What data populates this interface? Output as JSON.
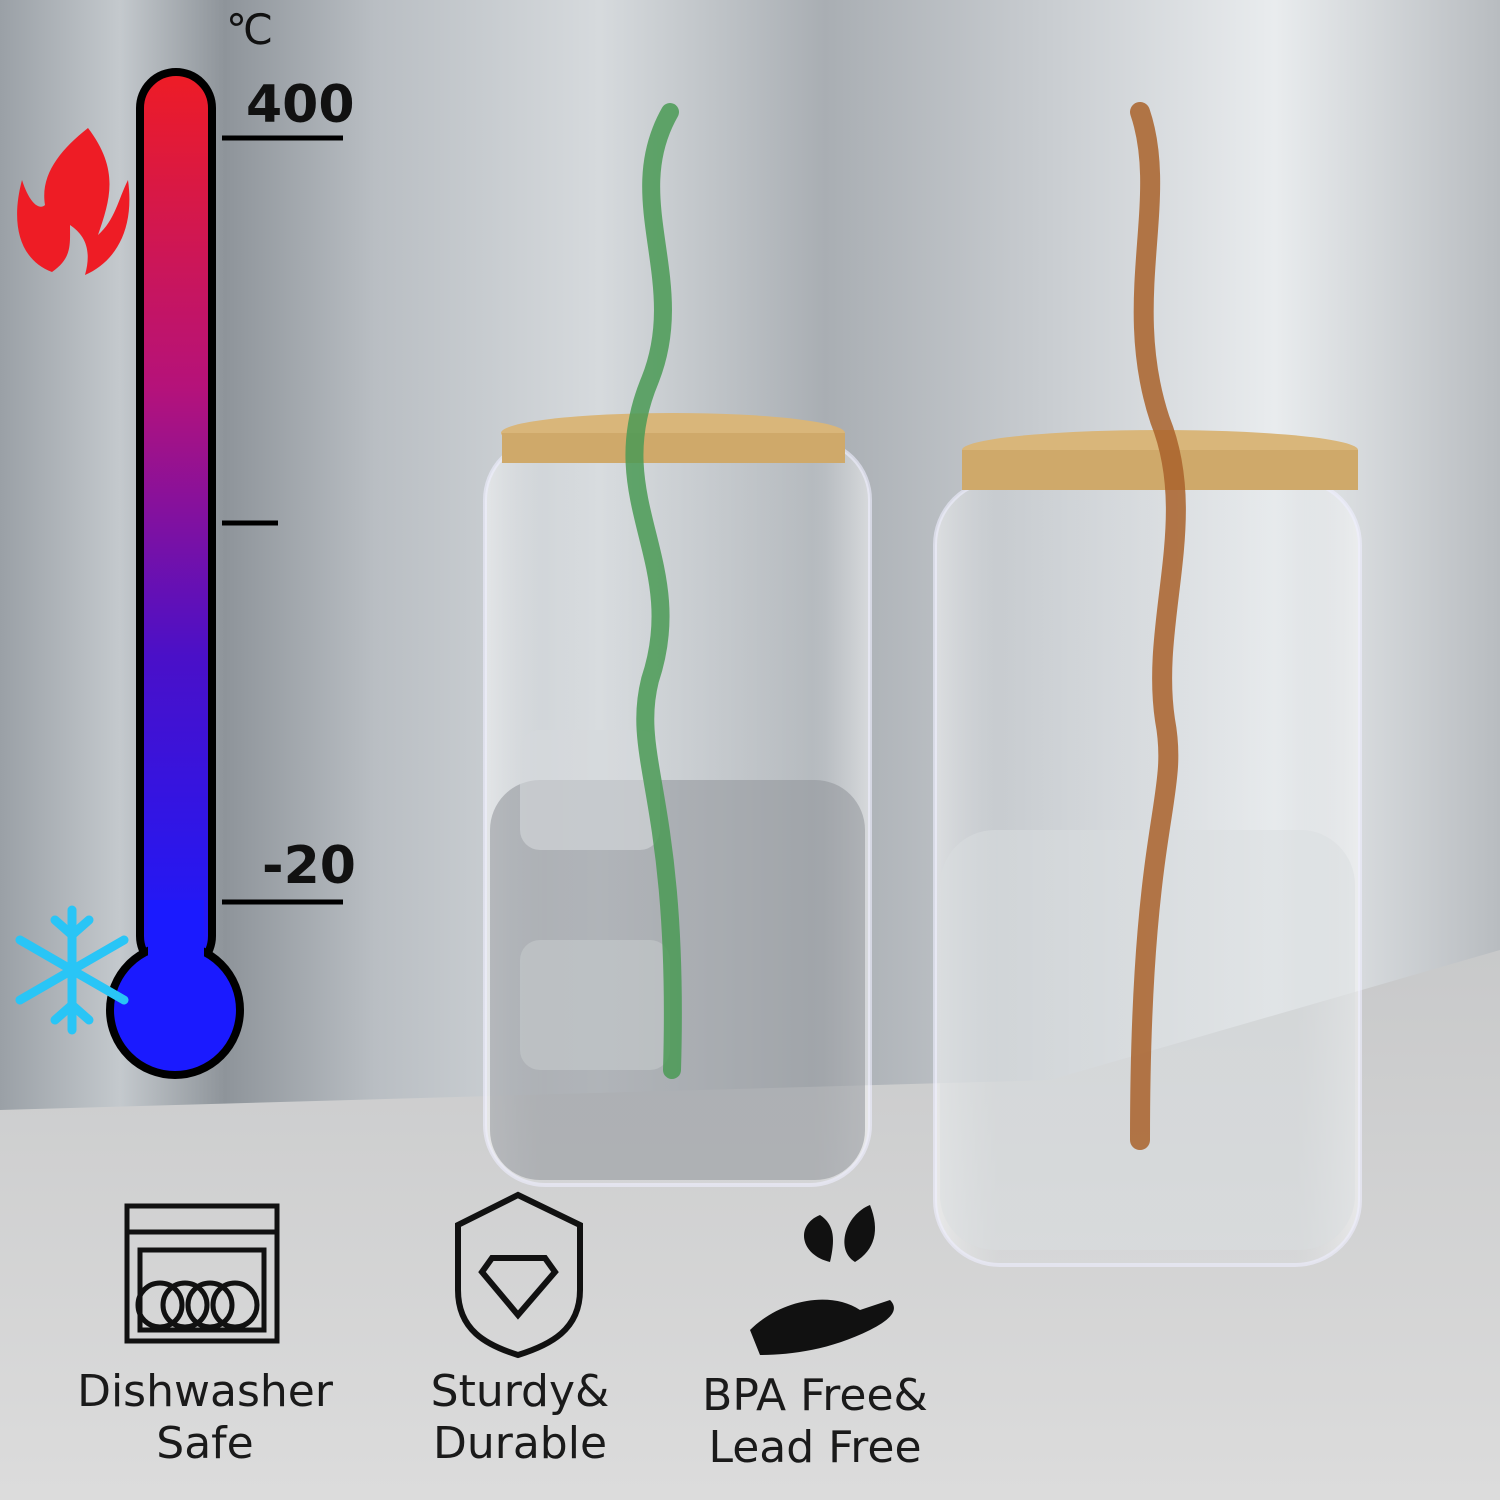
{
  "thermometer": {
    "unit": "℃",
    "max_label": "400",
    "min_label": "-20",
    "hot_color": "#ee1c25",
    "cold_color": "#1a1aff",
    "hot_icon": "flame-icon",
    "cold_icon": "snowflake-icon"
  },
  "features": [
    {
      "icon": "dishwasher-icon",
      "line1": "Dishwasher",
      "line2": "Safe"
    },
    {
      "icon": "shield-diamond-icon",
      "line1": "Sturdy&",
      "line2": "Durable"
    },
    {
      "icon": "hand-leaf-icon",
      "line1": "BPA Free&",
      "line2": "Lead Free"
    }
  ],
  "product": {
    "straw_colors": [
      "#4a9a55",
      "#a9612a"
    ],
    "lid_color": "#d9b67a"
  }
}
